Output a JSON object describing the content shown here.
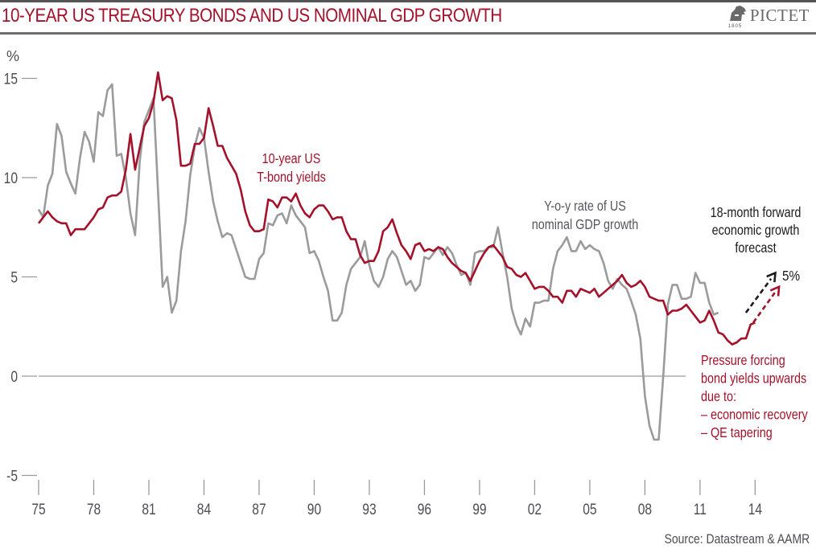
{
  "header": {
    "title": "10-YEAR US TREASURY BONDS AND US NOMINAL GDP GROWTH",
    "logo_text": "PICTET",
    "logo_year": "1805"
  },
  "footer": {
    "source": "Source: Datastream & AAMR"
  },
  "colors": {
    "bond": "#a3122a",
    "gdp": "#9b9b9b",
    "forecast_gdp": "#1a1a1a",
    "axis": "#9a9a9a",
    "text": "#4d4d55"
  },
  "chart_data": {
    "type": "line",
    "title": "10-YEAR US TREASURY BONDS AND US NOMINAL GDP GROWTH",
    "ylabel": "%",
    "xlabel": "",
    "ylim": [
      -5,
      15
    ],
    "xlim": [
      1975,
      2015.3
    ],
    "yticks": [
      15,
      10,
      5,
      0,
      -5
    ],
    "ytick_labels": [
      "15",
      "10",
      "5",
      "0",
      "-5"
    ],
    "xticks": [
      1975,
      1978,
      1981,
      1984,
      1987,
      1990,
      1993,
      1996,
      1999,
      2002,
      2005,
      2008,
      2011,
      2014
    ],
    "xtick_labels": [
      "75",
      "78",
      "81",
      "84",
      "87",
      "90",
      "93",
      "96",
      "99",
      "02",
      "05",
      "08",
      "11",
      "14"
    ],
    "grid": false,
    "zero_line": true,
    "x_start": 1975.0,
    "x_step": 0.25,
    "series": [
      {
        "name": "10-year US T-bond yields",
        "label_lines": [
          "10-year US",
          "T-bond yields"
        ],
        "color": "#a3122a",
        "values": [
          7.7,
          8.0,
          8.3,
          8.0,
          7.8,
          7.7,
          7.7,
          7.1,
          7.4,
          7.4,
          7.4,
          7.7,
          8.0,
          8.4,
          8.5,
          9.0,
          9.1,
          9.1,
          9.3,
          10.4,
          12.2,
          10.4,
          11.5,
          12.6,
          13.0,
          13.8,
          15.3,
          13.9,
          14.1,
          14.0,
          12.9,
          10.6,
          10.6,
          10.7,
          11.7,
          11.7,
          12.0,
          13.5,
          12.6,
          11.6,
          11.6,
          11.0,
          10.6,
          10.2,
          9.4,
          8.3,
          7.6,
          7.3,
          7.3,
          7.4,
          8.9,
          8.8,
          8.5,
          9.0,
          9.0,
          8.8,
          9.2,
          8.6,
          8.2,
          8.0,
          8.4,
          8.6,
          8.6,
          8.3,
          7.9,
          8.0,
          8.0,
          7.3,
          6.9,
          6.9,
          6.1,
          5.7,
          5.8,
          5.8,
          6.3,
          7.3,
          7.5,
          7.9,
          7.2,
          6.6,
          6.3,
          5.9,
          6.6,
          6.7,
          6.3,
          6.4,
          6.3,
          6.5,
          6.4,
          6.0,
          5.7,
          5.5,
          5.3,
          5.2,
          4.8,
          5.3,
          5.8,
          6.2,
          6.5,
          6.6,
          6.3,
          6.0,
          5.5,
          5.4,
          5.1,
          5.0,
          5.2,
          4.8,
          4.4,
          4.5,
          4.5,
          4.3,
          4.0,
          4.0,
          3.7,
          4.3,
          4.3,
          4.0,
          4.4,
          4.3,
          4.2,
          4.4,
          4.0,
          4.2,
          4.4,
          4.6,
          4.8,
          5.1,
          4.7,
          4.5,
          4.6,
          4.8,
          4.5,
          4.0,
          3.9,
          3.8,
          3.8,
          3.1,
          3.3,
          3.3,
          3.4,
          3.6,
          3.3,
          3.0,
          2.7,
          2.8,
          3.3,
          2.8,
          2.2,
          2.1,
          1.8,
          1.6,
          1.7,
          1.9,
          1.9,
          2.6,
          2.7
        ]
      },
      {
        "name": "Y-o-y rate of US nominal GDP growth",
        "label_lines": [
          "Y-o-y rate of US",
          "nominal GDP growth"
        ],
        "color": "#9b9b9b",
        "values": [
          8.4,
          8.0,
          9.6,
          10.2,
          12.7,
          12.1,
          10.3,
          9.7,
          9.2,
          11.0,
          12.3,
          11.8,
          10.8,
          13.3,
          13.1,
          14.4,
          14.7,
          11.1,
          11.2,
          10.0,
          8.2,
          7.1,
          10.8,
          12.8,
          13.4,
          14.0,
          9.3,
          4.5,
          5.0,
          3.2,
          3.8,
          6.3,
          7.8,
          10.1,
          11.6,
          12.5,
          12.0,
          10.3,
          8.8,
          7.8,
          7.0,
          7.2,
          7.1,
          6.4,
          5.7,
          5.0,
          4.9,
          4.9,
          5.9,
          6.2,
          7.7,
          7.6,
          8.1,
          8.2,
          7.7,
          8.6,
          8.1,
          7.8,
          7.5,
          6.2,
          6.3,
          5.8,
          5.0,
          4.3,
          2.8,
          2.8,
          3.2,
          4.6,
          5.4,
          5.7,
          6.0,
          6.8,
          5.6,
          4.8,
          4.5,
          5.0,
          5.9,
          6.3,
          6.0,
          5.3,
          4.6,
          4.8,
          4.3,
          4.6,
          6.0,
          5.9,
          6.2,
          6.5,
          6.1,
          6.5,
          6.2,
          5.6,
          5.1,
          5.2,
          4.6,
          6.2,
          6.3,
          6.3,
          6.5,
          6.5,
          7.5,
          6.2,
          5.0,
          3.4,
          2.6,
          2.1,
          2.9,
          2.5,
          3.7,
          3.7,
          3.8,
          3.8,
          5.4,
          6.3,
          6.6,
          7.0,
          6.3,
          6.3,
          6.8,
          6.4,
          6.6,
          6.4,
          6.3,
          5.7,
          4.8,
          4.4,
          4.9,
          4.6,
          4.4,
          3.8,
          3.1,
          1.9,
          -1.0,
          -2.5,
          -3.2,
          -3.2,
          0.0,
          3.6,
          4.6,
          4.6,
          3.9,
          3.9,
          4.0,
          5.2,
          4.7,
          4.7,
          3.7,
          3.1,
          3.2
        ]
      }
    ],
    "forecast": [
      {
        "series": "Y-o-y rate of US nominal GDP growth",
        "from": [
          2013.5,
          3.2
        ],
        "to": [
          2015.1,
          5.2
        ],
        "style": "dashed-arrow",
        "color": "#1a1a1a"
      },
      {
        "series": "10-year US T-bond yields",
        "from": [
          2013.9,
          2.7
        ],
        "to": [
          2015.3,
          4.5
        ],
        "style": "dashed-arrow",
        "color": "#a3122a"
      }
    ],
    "annotations": [
      {
        "id": "forecast_label",
        "lines": [
          "18-month forward",
          "economic growth",
          "forecast"
        ],
        "color": "#1a1a1a"
      },
      {
        "id": "forecast_value",
        "text": "5%",
        "color": "#1a1a1a"
      },
      {
        "id": "pressure_note",
        "lines": [
          "Pressure forcing",
          "bond yields upwards",
          "due to:",
          "– economic recovery",
          "– QE tapering"
        ],
        "color": "#a3122a"
      }
    ]
  }
}
